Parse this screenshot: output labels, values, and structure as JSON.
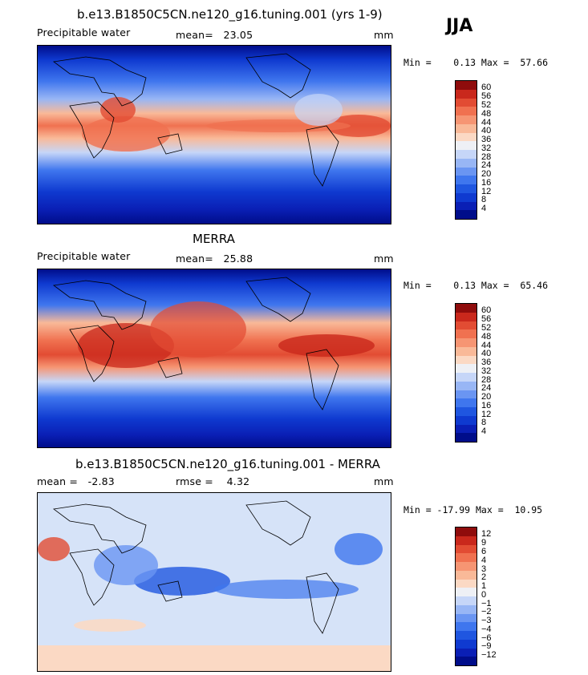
{
  "season": "JJA",
  "colors": {
    "precip_scale": [
      "#000d8a",
      "#0a1fb5",
      "#0f3ad0",
      "#1f56e0",
      "#3f76ee",
      "#6a95f2",
      "#98b6f5",
      "#c6d6f8",
      "#eef0f5",
      "#fbd9c4",
      "#f9b998",
      "#f69573",
      "#f07150",
      "#e24c33",
      "#c9281c",
      "#8f0c0c"
    ],
    "diff_scale": [
      "#000d8a",
      "#0a1fb5",
      "#0f3ad0",
      "#1f56e0",
      "#3f76ee",
      "#6a95f2",
      "#98b6f5",
      "#c6d6f8",
      "#eef0f5",
      "#fbd9c4",
      "#f9b998",
      "#f69573",
      "#f07150",
      "#e24c33",
      "#c9281c",
      "#8f0c0c"
    ]
  },
  "panels": [
    {
      "title": "b.e13.B1850C5CN.ne120_g16.tuning.001 (yrs 1-9)",
      "left_label": "Precipitable water",
      "mid_label": "mean=   23.05",
      "units": "mm",
      "minmax": "Min =    0.13 Max =  57.66",
      "colorbar_labels": [
        "60",
        "56",
        "52",
        "48",
        "44",
        "40",
        "36",
        "32",
        "28",
        "24",
        "20",
        "16",
        "12",
        "8",
        "4"
      ]
    },
    {
      "title": "MERRA",
      "left_label": "Precipitable water",
      "mid_label": "mean=   25.88",
      "units": "mm",
      "minmax": "Min =    0.13 Max =  65.46",
      "colorbar_labels": [
        "60",
        "56",
        "52",
        "48",
        "44",
        "40",
        "36",
        "32",
        "28",
        "24",
        "20",
        "16",
        "12",
        "8",
        "4"
      ]
    },
    {
      "title": "b.e13.B1850C5CN.ne120_g16.tuning.001 - MERRA",
      "left_label": "mean =   -2.83",
      "mid_label": "rmse =    4.32",
      "units": "mm",
      "minmax": "Min = -17.99 Max =  10.95",
      "colorbar_labels": [
        "12",
        "9",
        "6",
        "4",
        "3",
        "2",
        "1",
        "0",
        "−1",
        "−2",
        "−3",
        "−4",
        "−6",
        "−9",
        "−12"
      ]
    }
  ]
}
